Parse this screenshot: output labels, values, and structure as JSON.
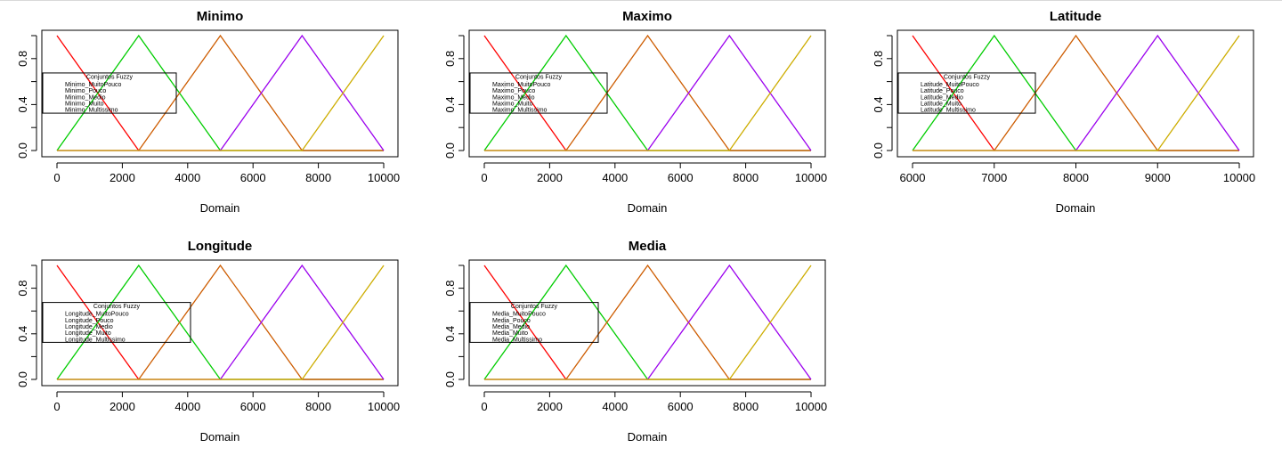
{
  "chart_data": [
    {
      "type": "line",
      "title": "Minimo",
      "xlabel": "Domain",
      "ylabel": "",
      "xlim": [
        0,
        10000
      ],
      "ylim": [
        0,
        1
      ],
      "xticks": [
        0,
        2000,
        4000,
        6000,
        8000,
        10000
      ],
      "yticks": [
        0.0,
        0.4,
        0.8
      ],
      "legend": {
        "title": "Conjuntos Fuzzy",
        "placement": "left",
        "entries": [
          "Minimo_MuitoPouco",
          "Minimo_Pouco",
          "Minimo_Medio",
          "Minimo_Muito",
          "Minimo_Multissimo"
        ]
      },
      "series": [
        {
          "color": "#ff0000",
          "x": [
            0,
            2500,
            10000
          ],
          "y": [
            1,
            0,
            0
          ]
        },
        {
          "color": "#00cd00",
          "x": [
            0,
            2500,
            5000,
            10000
          ],
          "y": [
            0,
            1,
            0,
            0
          ]
        },
        {
          "color": "#cd5c00",
          "x": [
            0,
            2500,
            5000,
            7500,
            10000
          ],
          "y": [
            0,
            0,
            1,
            0,
            0
          ]
        },
        {
          "color": "#9b00ee",
          "x": [
            0,
            5000,
            7500,
            10000
          ],
          "y": [
            0,
            0,
            1,
            0
          ]
        },
        {
          "color": "#cdad00",
          "x": [
            0,
            7500,
            10000
          ],
          "y": [
            0,
            0,
            1
          ]
        }
      ]
    },
    {
      "type": "line",
      "title": "Maximo",
      "xlabel": "Domain",
      "ylabel": "",
      "xlim": [
        0,
        10000
      ],
      "ylim": [
        0,
        1
      ],
      "xticks": [
        0,
        2000,
        4000,
        6000,
        8000,
        10000
      ],
      "yticks": [
        0.0,
        0.4,
        0.8
      ],
      "legend": {
        "title": "Conjuntos Fuzzy",
        "placement": "left",
        "entries": [
          "Maximo_MuitoPouco",
          "Maximo_Pouco",
          "Maximo_Medio",
          "Maximo_Muito",
          "Maximo_Multissimo"
        ]
      },
      "series": [
        {
          "color": "#ff0000",
          "x": [
            0,
            2500,
            10000
          ],
          "y": [
            1,
            0,
            0
          ]
        },
        {
          "color": "#00cd00",
          "x": [
            0,
            2500,
            5000,
            10000
          ],
          "y": [
            0,
            1,
            0,
            0
          ]
        },
        {
          "color": "#cd5c00",
          "x": [
            0,
            2500,
            5000,
            7500,
            10000
          ],
          "y": [
            0,
            0,
            1,
            0,
            0
          ]
        },
        {
          "color": "#9b00ee",
          "x": [
            0,
            5000,
            7500,
            10000
          ],
          "y": [
            0,
            0,
            1,
            0
          ]
        },
        {
          "color": "#cdad00",
          "x": [
            0,
            7500,
            10000
          ],
          "y": [
            0,
            0,
            1
          ]
        }
      ]
    },
    {
      "type": "line",
      "title": "Latitude",
      "xlabel": "Domain",
      "ylabel": "",
      "xlim": [
        6000,
        10000
      ],
      "ylim": [
        0,
        1
      ],
      "xticks": [
        6000,
        7000,
        8000,
        9000,
        10000
      ],
      "yticks": [
        0.0,
        0.4,
        0.8
      ],
      "legend": {
        "title": "Conjuntos Fuzzy",
        "placement": "left",
        "entries": [
          "Latitude_MuitoPouco",
          "Latitude_Pouco",
          "Latitude_Medio",
          "Latitude_Muito",
          "Latitude_Multissimo"
        ]
      },
      "series": [
        {
          "color": "#ff0000",
          "x": [
            6000,
            7000,
            10000
          ],
          "y": [
            1,
            0,
            0
          ]
        },
        {
          "color": "#00cd00",
          "x": [
            6000,
            7000,
            8000,
            10000
          ],
          "y": [
            0,
            1,
            0,
            0
          ]
        },
        {
          "color": "#cd5c00",
          "x": [
            6000,
            7000,
            8000,
            9000,
            10000
          ],
          "y": [
            0,
            0,
            1,
            0,
            0
          ]
        },
        {
          "color": "#9b00ee",
          "x": [
            6000,
            8000,
            9000,
            10000
          ],
          "y": [
            0,
            0,
            1,
            0
          ]
        },
        {
          "color": "#cdad00",
          "x": [
            6000,
            9000,
            10000
          ],
          "y": [
            0,
            0,
            1
          ]
        }
      ]
    },
    {
      "type": "line",
      "title": "Longitude",
      "xlabel": "Domain",
      "ylabel": "",
      "xlim": [
        0,
        10000
      ],
      "ylim": [
        0,
        1
      ],
      "xticks": [
        0,
        2000,
        4000,
        6000,
        8000,
        10000
      ],
      "yticks": [
        0.0,
        0.4,
        0.8
      ],
      "legend": {
        "title": "Conjuntos Fuzzy",
        "placement": "left",
        "entries": [
          "Longitude_MuitoPouco",
          "Longitude_Pouco",
          "Longitude_Medio",
          "Longitude_Muito",
          "Longitude_Multissimo"
        ]
      },
      "series": [
        {
          "color": "#ff0000",
          "x": [
            0,
            2500,
            10000
          ],
          "y": [
            1,
            0,
            0
          ]
        },
        {
          "color": "#00cd00",
          "x": [
            0,
            2500,
            5000,
            10000
          ],
          "y": [
            0,
            1,
            0,
            0
          ]
        },
        {
          "color": "#cd5c00",
          "x": [
            0,
            2500,
            5000,
            7500,
            10000
          ],
          "y": [
            0,
            0,
            1,
            0,
            0
          ]
        },
        {
          "color": "#9b00ee",
          "x": [
            0,
            5000,
            7500,
            10000
          ],
          "y": [
            0,
            0,
            1,
            0
          ]
        },
        {
          "color": "#cdad00",
          "x": [
            0,
            7500,
            10000
          ],
          "y": [
            0,
            0,
            1
          ]
        }
      ]
    },
    {
      "type": "line",
      "title": "Media",
      "xlabel": "Domain",
      "ylabel": "",
      "xlim": [
        0,
        10000
      ],
      "ylim": [
        0,
        1
      ],
      "xticks": [
        0,
        2000,
        4000,
        6000,
        8000,
        10000
      ],
      "yticks": [
        0.0,
        0.4,
        0.8
      ],
      "legend": {
        "title": "Conjuntos Fuzzy",
        "placement": "left",
        "entries": [
          "Media_MuitoPouco",
          "Media_Pouco",
          "Media_Medio",
          "Media_Muito",
          "Media_Multissimo"
        ]
      },
      "series": [
        {
          "color": "#ff0000",
          "x": [
            0,
            2500,
            10000
          ],
          "y": [
            1,
            0,
            0
          ]
        },
        {
          "color": "#00cd00",
          "x": [
            0,
            2500,
            5000,
            10000
          ],
          "y": [
            0,
            1,
            0,
            0
          ]
        },
        {
          "color": "#cd5c00",
          "x": [
            0,
            2500,
            5000,
            7500,
            10000
          ],
          "y": [
            0,
            0,
            1,
            0,
            0
          ]
        },
        {
          "color": "#9b00ee",
          "x": [
            0,
            5000,
            7500,
            10000
          ],
          "y": [
            0,
            0,
            1,
            0
          ]
        },
        {
          "color": "#cdad00",
          "x": [
            0,
            7500,
            10000
          ],
          "y": [
            0,
            0,
            1
          ]
        }
      ]
    }
  ]
}
